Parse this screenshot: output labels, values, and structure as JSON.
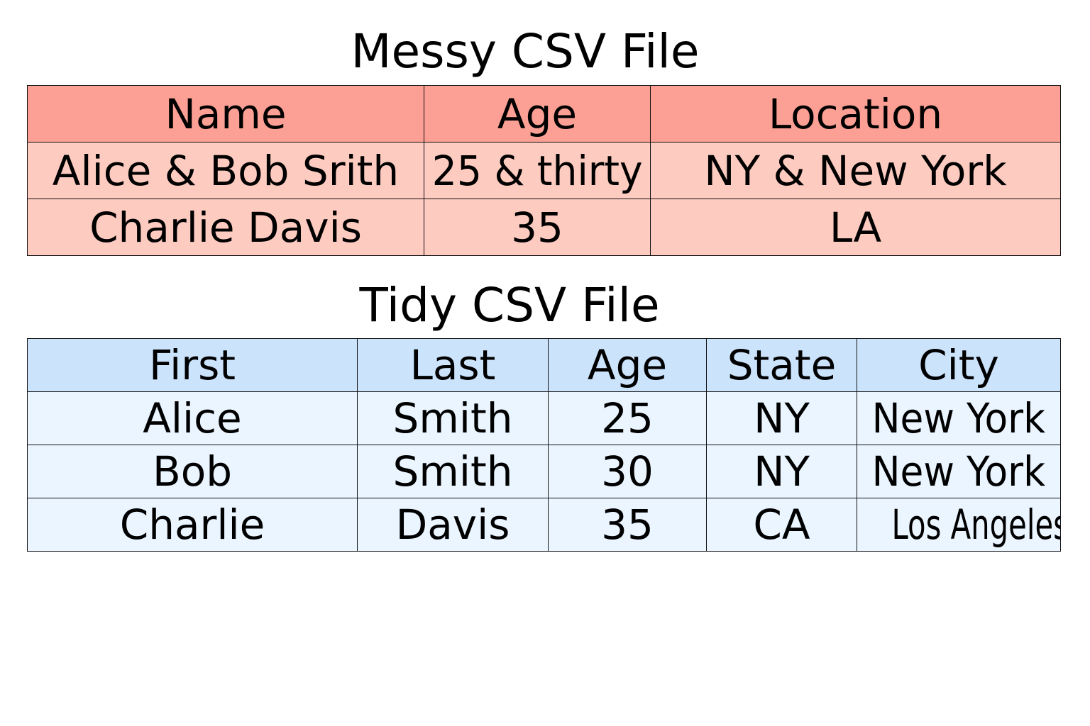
{
  "messy": {
    "title": "Messy CSV File",
    "headers": [
      "Name",
      "Age",
      "Location"
    ],
    "rows": [
      [
        "Alice & Bob Srith",
        "25 & thirty",
        "NY & New York"
      ],
      [
        "Charlie Davis",
        "35",
        "LA"
      ]
    ],
    "colors": {
      "header": "#fca095",
      "row": "#fdcbc0"
    }
  },
  "tidy": {
    "title": "Tidy CSV File",
    "headers": [
      "First",
      "Last",
      "Age",
      "State",
      "City"
    ],
    "rows": [
      [
        "Alice",
        "Smith",
        "25",
        "NY",
        "New York"
      ],
      [
        "Bob",
        "Smith",
        "30",
        "NY",
        "New York"
      ],
      [
        "Charlie",
        "Davis",
        "35",
        "CA",
        "Los Angeles"
      ]
    ],
    "colors": {
      "header": "#cce3fc",
      "row": "#eaf5ff"
    }
  }
}
